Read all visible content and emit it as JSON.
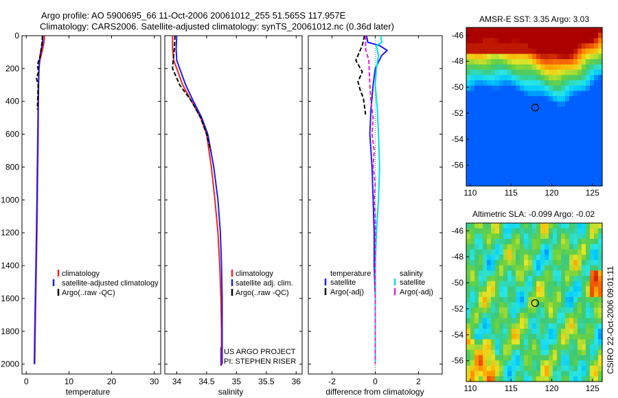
{
  "header": {
    "line1": "Argo profile: AO 5900695_66 11-Oct-2006 20061012_255 51.565S 117.957E",
    "line2": "Climatology: CARS2006. Satellite-adjusted climatology: synTS_20061012.nc (0.36d later)"
  },
  "side_label": "CSIRO 22-Oct-2006 09:01:11",
  "colors": {
    "climatology": "#e8261e",
    "satellite": "#1a1aff",
    "argo": "#000000",
    "sal_satellite": "#00e0e0",
    "sal_argo": "#e020e0",
    "purple": "#7a1fa0"
  },
  "chart_data": [
    {
      "id": "temperature",
      "type": "line",
      "xlabel": "temperature",
      "ylabel": "",
      "xlim": [
        -1,
        31.5
      ],
      "ylim": [
        0,
        2060
      ],
      "y_reversed": true,
      "xticks": [
        0,
        10,
        20,
        30
      ],
      "yticks": [
        0,
        200,
        400,
        600,
        800,
        1000,
        1200,
        1400,
        1600,
        1800,
        2000
      ],
      "legend": [
        "climatology",
        "satellite-adjusted climatology",
        "Argo(..raw -QC)"
      ],
      "series": [
        {
          "name": "climatology",
          "style": "solid",
          "color": "#e8261e",
          "x": [
            4.3,
            4.1,
            3.7,
            3.2,
            3.0,
            2.9,
            2.85,
            2.8,
            2.7,
            2.6,
            2.5,
            2.3,
            2.1,
            2.0
          ],
          "y": [
            0,
            50,
            100,
            150,
            200,
            300,
            400,
            600,
            800,
            1000,
            1200,
            1500,
            1800,
            2000
          ]
        },
        {
          "name": "satellite",
          "style": "solid",
          "color": "#1a1aff",
          "x": [
            3.9,
            3.8,
            3.4,
            3.1,
            2.95,
            2.85,
            2.8,
            2.7,
            2.6,
            2.5,
            2.4,
            2.2,
            2.0,
            1.9
          ],
          "y": [
            0,
            50,
            100,
            150,
            200,
            300,
            400,
            600,
            800,
            1000,
            1200,
            1500,
            1800,
            2000
          ]
        },
        {
          "name": "argo",
          "style": "dashed",
          "color": "#000000",
          "x": [
            3.8,
            3.7,
            3.5,
            3.2,
            2.6,
            2.9,
            2.4,
            2.8,
            2.7,
            2.6
          ],
          "y": [
            0,
            40,
            80,
            130,
            180,
            220,
            260,
            300,
            380,
            450
          ]
        }
      ]
    },
    {
      "id": "salinity",
      "type": "line",
      "xlabel": "salinity",
      "ylabel": "",
      "xlim": [
        33.8,
        36.1
      ],
      "ylim": [
        0,
        2060
      ],
      "y_reversed": true,
      "xticks": [
        34,
        34.5,
        35,
        35.5,
        36
      ],
      "xticklabels": [
        "34",
        "34.5",
        "35",
        "35.5",
        "36"
      ],
      "legend": [
        "climatology",
        "satellite adj. clim.",
        "Argo(..raw -QC)"
      ],
      "annotations": [
        "US ARGO PROJECT",
        "PI: STEPHEN RISER"
      ],
      "series": [
        {
          "name": "climatology",
          "style": "solid",
          "color": "#e8261e",
          "x": [
            33.93,
            33.93,
            33.95,
            34.0,
            34.1,
            34.25,
            34.4,
            34.5,
            34.58,
            34.64,
            34.69,
            34.72,
            34.74,
            34.75,
            34.75
          ],
          "y": [
            0,
            80,
            150,
            200,
            300,
            400,
            500,
            600,
            800,
            1000,
            1200,
            1400,
            1600,
            1800,
            2000
          ]
        },
        {
          "name": "satellite",
          "style": "solid",
          "color": "#1a1aff",
          "x": [
            34.0,
            33.99,
            34.0,
            34.05,
            34.15,
            34.28,
            34.42,
            34.52,
            34.62,
            34.69,
            34.73,
            34.75,
            34.76,
            34.76,
            34.76
          ],
          "y": [
            0,
            80,
            150,
            200,
            300,
            400,
            500,
            600,
            800,
            1000,
            1200,
            1400,
            1600,
            1800,
            2000
          ]
        },
        {
          "name": "argo",
          "style": "dashed",
          "color": "#000000",
          "x": [
            33.97,
            33.96,
            33.94,
            33.93,
            34.05,
            34.25,
            34.4,
            34.5,
            34.57
          ],
          "y": [
            0,
            80,
            150,
            200,
            300,
            400,
            500,
            600,
            700
          ]
        }
      ]
    },
    {
      "id": "difference",
      "type": "line",
      "xlabel": "difference from climatology",
      "ylabel": "",
      "xlim": [
        -3.1,
        3.1
      ],
      "ylim": [
        0,
        2060
      ],
      "y_reversed": true,
      "xticks": [
        -2,
        0,
        2
      ],
      "legend": [
        "temperature",
        "satellite",
        "Argo(-adj)",
        "salinity",
        "satellite",
        "Argo(-adj)"
      ],
      "series": [
        {
          "name": "temperature satellite",
          "style": "solid",
          "color": "#1a1aff",
          "x": [
            -0.4,
            -0.35,
            0.2,
            0.55,
            0.3,
            0.0,
            -0.1,
            -0.2,
            -0.25,
            -0.15,
            -0.1,
            -0.05,
            -0.05,
            0.0,
            0.0,
            0.0
          ],
          "y": [
            0,
            40,
            60,
            90,
            120,
            200,
            300,
            450,
            600,
            800,
            1000,
            1200,
            1400,
            1600,
            1800,
            2000
          ]
        },
        {
          "name": "temperature argo",
          "style": "dashed",
          "color": "#000000",
          "x": [
            -0.5,
            -0.6,
            -0.9,
            -0.6,
            -0.8,
            -0.7,
            -0.55,
            -0.5,
            -0.45
          ],
          "y": [
            0,
            60,
            150,
            220,
            280,
            330,
            380,
            430,
            480
          ]
        },
        {
          "name": "salinity satellite",
          "style": "solid",
          "color": "#00e0e0",
          "x": [
            0.25,
            0.3,
            0.05,
            0.1,
            0.15,
            0.05,
            0.0,
            0.1,
            0.15,
            0.2,
            0.15,
            0.05,
            0.0,
            0.0,
            0.0,
            0.0
          ],
          "y": [
            0,
            40,
            60,
            90,
            120,
            200,
            300,
            450,
            600,
            800,
            1000,
            1200,
            1400,
            1600,
            1800,
            2000
          ]
        },
        {
          "name": "salinity argo",
          "style": "dashed",
          "color": "#e020e0",
          "x": [
            -0.45,
            -0.45,
            -0.3,
            -0.25,
            -0.2,
            -0.1,
            -0.15,
            -0.05,
            -0.1,
            0.0,
            -0.05,
            0.0,
            0.0,
            0.0,
            0.0,
            0.0,
            0.0,
            0.0
          ],
          "y": [
            0,
            80,
            150,
            300,
            400,
            500,
            600,
            700,
            800,
            900,
            1000,
            1100,
            1200,
            1300,
            1400,
            1600,
            1800,
            2000
          ]
        }
      ]
    },
    {
      "id": "sst_map",
      "type": "heatmap",
      "title": "AMSR-E SST: 3.35 Argo: 3.03",
      "xlim": [
        109.5,
        126.2
      ],
      "ylim": [
        -57.6,
        -45.4
      ],
      "xticks": [
        110,
        115,
        120,
        125
      ],
      "yticks": [
        -46,
        -48,
        -50,
        -52,
        -54,
        -56
      ],
      "marker": {
        "lon": 117.957,
        "lat": -51.565
      }
    },
    {
      "id": "sla_map",
      "type": "heatmap",
      "title": "Altimetric SLA: -0.099 Argo: -0.02",
      "xlim": [
        109.5,
        126.2
      ],
      "ylim": [
        -57.6,
        -45.4
      ],
      "xticks": [
        110,
        115,
        120,
        125
      ],
      "yticks": [
        -46,
        -48,
        -50,
        -52,
        -54,
        -56
      ],
      "marker": {
        "lon": 117.957,
        "lat": -51.565
      }
    }
  ]
}
